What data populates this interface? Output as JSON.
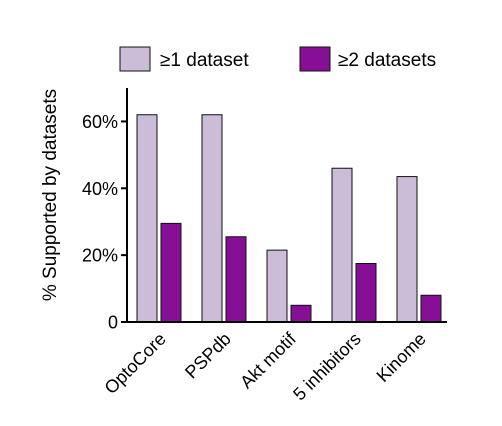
{
  "chart_data": {
    "type": "bar",
    "categories": [
      "OptoCore",
      "PSPdb",
      "Akt motif",
      "5 inhibitors",
      "Kinome"
    ],
    "series": [
      {
        "name": "≥1 dataset",
        "values": [
          62,
          62,
          21.5,
          46,
          43.5
        ],
        "color": "#cbbcd8"
      },
      {
        "name": "≥2 datasets",
        "values": [
          29.5,
          25.5,
          5,
          17.5,
          8
        ],
        "color": "#870f96"
      }
    ],
    "xlabel": "",
    "ylabel": "% Supported by datasets",
    "ylim": [
      0,
      70
    ],
    "yticks": [
      0,
      20,
      40,
      60
    ],
    "ytick_labels": [
      "0",
      "20%",
      "40%",
      "60%"
    ],
    "grid": false,
    "legend": "top"
  }
}
